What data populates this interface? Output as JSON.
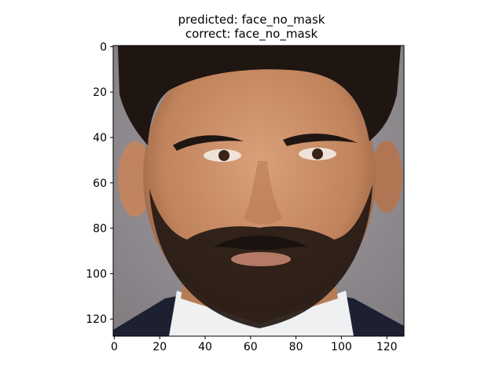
{
  "figure": {
    "title_line1": "predicted: face_no_mask",
    "title_line2": "correct: face_no_mask"
  },
  "axes": {
    "x_ticks": [
      "0",
      "20",
      "40",
      "60",
      "80",
      "100",
      "120"
    ],
    "y_ticks": [
      "0",
      "20",
      "40",
      "60",
      "80",
      "100",
      "120"
    ],
    "xlim": [
      -0.5,
      127.5
    ],
    "ylim": [
      127.5,
      -0.5
    ]
  },
  "image": {
    "description_icon": "portrait-photo",
    "background_color": "#8f8a8e",
    "skin_color": "#c98f68",
    "hair_color": "#1f1612",
    "shirt_color": "#eef0f2",
    "jacket_color": "#1c2030"
  }
}
